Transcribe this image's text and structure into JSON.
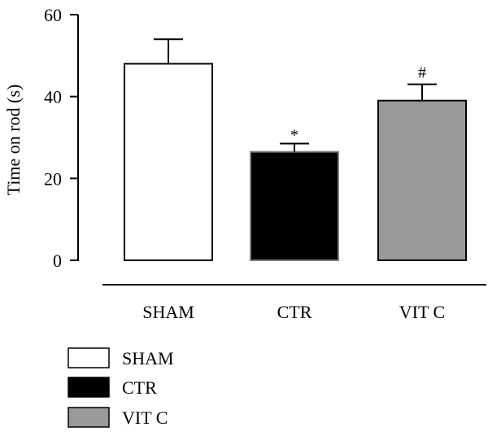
{
  "chart_data": {
    "type": "bar",
    "title": "",
    "xlabel": "",
    "ylabel": "Time on rod (s)",
    "ylim": [
      0,
      60
    ],
    "yticks": [
      0,
      20,
      40,
      60
    ],
    "grid": false,
    "legend_position": "bottom-left",
    "categories": [
      "SHAM",
      "CTR",
      "VIT C"
    ],
    "values": [
      48,
      26.5,
      39
    ],
    "errors": [
      6,
      2,
      4
    ],
    "annotations": [
      "",
      "*",
      "#"
    ],
    "colors": [
      "#ffffff",
      "#000000",
      "#999999"
    ],
    "legend": [
      "SHAM",
      "CTR",
      "VIT C"
    ]
  }
}
